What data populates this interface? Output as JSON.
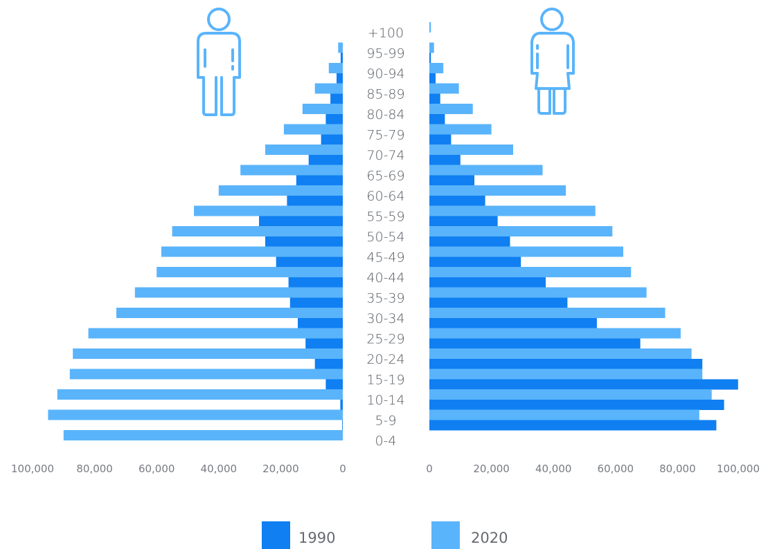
{
  "chart_data": {
    "type": "bar",
    "orientation": "horizontal",
    "variant": "population-pyramid",
    "categories": [
      "+100",
      "95-99",
      "90-94",
      "85-89",
      "80-84",
      "75-79",
      "70-74",
      "65-69",
      "60-64",
      "55-59",
      "50-54",
      "45-49",
      "40-44",
      "35-39",
      "30-34",
      "25-29",
      "20-24",
      "15-19",
      "10-14",
      "5-9",
      "0-4"
    ],
    "panels": [
      {
        "side": "left",
        "icon": "male-figure-icon",
        "series": [
          {
            "name": "1990",
            "color": "#0f7ff2",
            "values": [
              0,
              700,
              2000,
              4000,
              5500,
              7000,
              11000,
              15000,
              18000,
              27000,
              25000,
              21500,
              17500,
              17000,
              14500,
              12000,
              9000,
              5500,
              800,
              200,
              0
            ]
          },
          {
            "name": "2020",
            "color": "#5ab4fb",
            "values": [
              0,
              1500,
              4500,
              9000,
              13000,
              19000,
              25000,
              33000,
              40000,
              48000,
              55000,
              58500,
              60000,
              67000,
              73000,
              82000,
              87000,
              88000,
              92000,
              95000,
              90000
            ]
          }
        ]
      },
      {
        "side": "right",
        "icon": "female-figure-icon",
        "series": [
          {
            "name": "1990",
            "color": "#0f7ff2",
            "values": [
              0,
              500,
              2000,
              3500,
              5000,
              7000,
              10000,
              14500,
              18000,
              22000,
              26000,
              29500,
              37500,
              44500,
              54000,
              68000,
              88000,
              99500,
              95000,
              92500,
              0
            ]
          },
          {
            "name": "2020",
            "color": "#5ab4fb",
            "values": [
              500,
              1500,
              4500,
              9500,
              14000,
              20000,
              27000,
              36500,
              44000,
              53500,
              59000,
              62500,
              65000,
              70000,
              76000,
              81000,
              84500,
              88000,
              91000,
              87000,
              0
            ]
          }
        ]
      }
    ],
    "xlim": [
      0,
      100000
    ],
    "x_ticks": [
      "100,000",
      "80,000",
      "60,000",
      "40,000",
      "20,000",
      "0"
    ],
    "x_ticks_right": [
      "0",
      "20,000",
      "40,000",
      "60,000",
      "80,000",
      "100,000"
    ],
    "legend": [
      {
        "label": "1990",
        "color": "#0f7ff2"
      },
      {
        "label": "2020",
        "color": "#5ab4fb"
      }
    ],
    "legend_position": "bottom",
    "grid": false
  }
}
